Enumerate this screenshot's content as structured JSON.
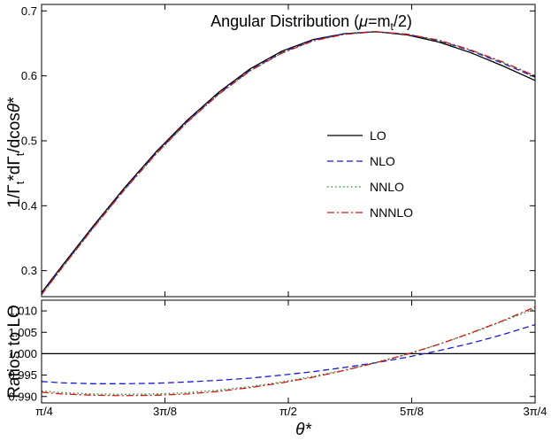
{
  "chart_data": [
    {
      "type": "line",
      "panel": "main",
      "title": "Angular Distribution (μ=m_t/2)",
      "title_parts": {
        "prefix": "Angular Distribution (",
        "mu": "μ",
        "eq": "=m",
        "sub": "t",
        "suffix": "/2)"
      },
      "ylabel": "1/Γ_t*dΓ_t/dcosθ*",
      "ylabel_parts": {
        "a": "1/Γ",
        "a_sub": "t",
        "b": "*dΓ",
        "b_sub": "t",
        "c": "/dcos",
        "theta": "θ",
        "star": "*"
      },
      "xlabel": "θ*",
      "xlim": [
        0.7853981634,
        2.3561944902
      ],
      "ylim": [
        0.26,
        0.71
      ],
      "x_ticks": [
        0.7853981634,
        1.1780972451,
        1.5707963268,
        1.9634954085,
        2.3561944902
      ],
      "x_tick_labels": [
        "π/4",
        "3π/8",
        "π/2",
        "5π/8",
        "3π/4"
      ],
      "y_ticks": [
        0.3,
        0.4,
        0.5,
        0.6,
        0.7
      ],
      "y_tick_labels": [
        "0.3",
        "0.4",
        "0.5",
        "0.6",
        "0.7"
      ],
      "grid": false,
      "legend_position": "right-center",
      "x": [
        0.785,
        0.85,
        0.95,
        1.05,
        1.15,
        1.25,
        1.35,
        1.45,
        1.55,
        1.65,
        1.75,
        1.85,
        1.95,
        2.05,
        2.15,
        2.25,
        2.356
      ],
      "series": [
        {
          "name": "LO",
          "color": "#000000",
          "dash": "solid",
          "values": [
            0.266,
            0.307,
            0.369,
            0.428,
            0.483,
            0.532,
            0.575,
            0.611,
            0.638,
            0.656,
            0.665,
            0.668,
            0.663,
            0.652,
            0.636,
            0.616,
            0.593
          ]
        },
        {
          "name": "NLO",
          "color": "#1a1ad6",
          "dash": "dashed",
          "values": [
            0.264,
            0.305,
            0.367,
            0.426,
            0.481,
            0.53,
            0.573,
            0.609,
            0.636,
            0.655,
            0.665,
            0.668,
            0.664,
            0.654,
            0.639,
            0.62,
            0.598
          ]
        },
        {
          "name": "NNLO",
          "color": "#1a8a1a",
          "dash": "dotted",
          "values": [
            0.263,
            0.304,
            0.366,
            0.425,
            0.48,
            0.529,
            0.572,
            0.608,
            0.635,
            0.654,
            0.664,
            0.668,
            0.664,
            0.654,
            0.64,
            0.621,
            0.6
          ]
        },
        {
          "name": "NNNLO",
          "color": "#d01a1a",
          "dash": "dashdot",
          "values": [
            0.263,
            0.304,
            0.366,
            0.425,
            0.48,
            0.529,
            0.572,
            0.608,
            0.635,
            0.654,
            0.664,
            0.668,
            0.664,
            0.655,
            0.64,
            0.622,
            0.6
          ]
        }
      ]
    },
    {
      "type": "line",
      "panel": "ratio",
      "ylabel": "Ratios to LO",
      "xlabel": "θ*",
      "xlim": [
        0.7853981634,
        2.3561944902
      ],
      "ylim": [
        0.9885,
        1.0125
      ],
      "x_ticks": [
        0.7853981634,
        1.1780972451,
        1.5707963268,
        1.9634954085,
        2.3561944902
      ],
      "x_tick_labels": [
        "π/4",
        "3π/8",
        "π/2",
        "5π/8",
        "3π/4"
      ],
      "y_ticks": [
        0.99,
        0.995,
        1.0,
        1.005,
        1.01
      ],
      "y_tick_labels": [
        "0.990",
        "0.995",
        "1.000",
        "1.005",
        "1.010"
      ],
      "grid": false,
      "x": [
        0.785,
        0.85,
        0.95,
        1.05,
        1.15,
        1.25,
        1.35,
        1.45,
        1.55,
        1.65,
        1.75,
        1.85,
        1.95,
        2.05,
        2.15,
        2.25,
        2.356
      ],
      "series": [
        {
          "name": "LO",
          "color": "#000000",
          "dash": "solid",
          "values": [
            1.0,
            1.0,
            1.0,
            1.0,
            1.0,
            1.0,
            1.0,
            1.0,
            1.0,
            1.0,
            1.0,
            1.0,
            1.0,
            1.0,
            1.0,
            1.0,
            1.0
          ]
        },
        {
          "name": "NLO",
          "color": "#1a1ad6",
          "dash": "dashed",
          "values": [
            0.9935,
            0.9932,
            0.993,
            0.993,
            0.9931,
            0.9934,
            0.9938,
            0.9943,
            0.995,
            0.9958,
            0.9968,
            0.9979,
            0.9992,
            1.0007,
            1.0024,
            1.0044,
            1.0068
          ]
        },
        {
          "name": "NNLO",
          "color": "#1a8a1a",
          "dash": "dotted",
          "values": [
            0.9913,
            0.9909,
            0.9906,
            0.9905,
            0.9906,
            0.9909,
            0.9915,
            0.9923,
            0.9934,
            0.9947,
            0.9962,
            0.998,
            0.9999,
            1.0022,
            1.0047,
            1.0075,
            1.0105
          ]
        },
        {
          "name": "NNNLO",
          "color": "#d01a1a",
          "dash": "dashdot",
          "values": [
            0.991,
            0.9906,
            0.9903,
            0.9902,
            0.9903,
            0.9906,
            0.9912,
            0.9921,
            0.9932,
            0.9945,
            0.9961,
            0.9979,
            0.9999,
            1.0022,
            1.0048,
            1.0076,
            1.0109
          ]
        }
      ]
    }
  ]
}
